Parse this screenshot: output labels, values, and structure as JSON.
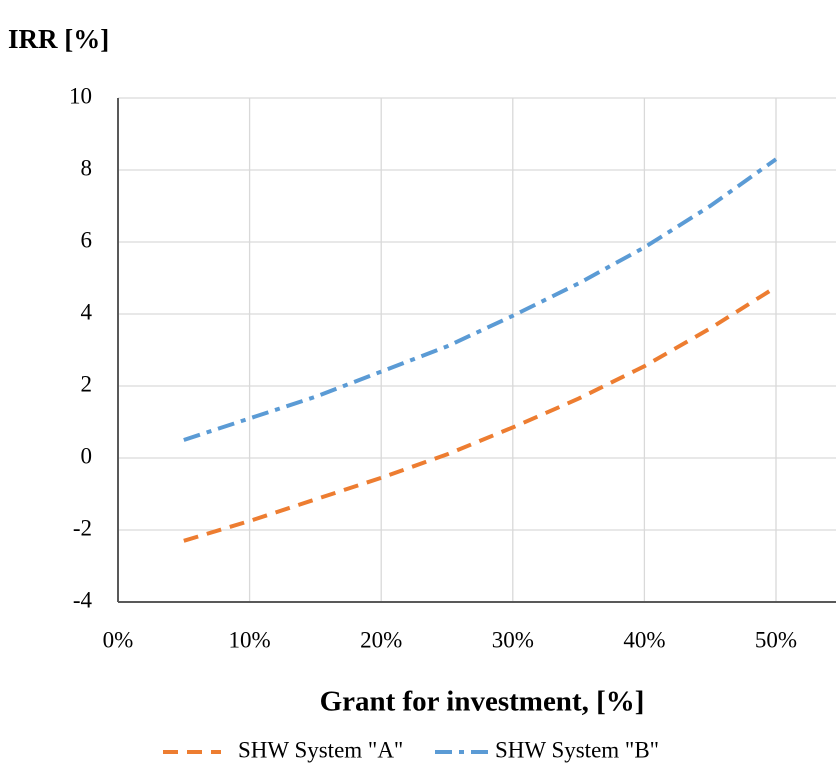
{
  "chart_data": {
    "type": "line",
    "y_axis_title": "IRR [%]",
    "x_axis_title": "Grant for investment, [%]",
    "x": [
      5,
      10,
      15,
      20,
      25,
      30,
      35,
      40,
      45,
      50
    ],
    "series": [
      {
        "name": "SHW System \"A\"",
        "color": "#ed7d31",
        "dash": "dashed",
        "values": [
          -2.3,
          -1.75,
          -1.15,
          -0.55,
          0.1,
          0.85,
          1.65,
          2.55,
          3.6,
          4.75
        ]
      },
      {
        "name": "SHW System \"B\"",
        "color": "#5b9bd5",
        "dash": "dashdot",
        "values": [
          0.5,
          1.1,
          1.7,
          2.4,
          3.1,
          3.95,
          4.85,
          5.85,
          7.0,
          8.3
        ]
      }
    ],
    "xlim": [
      0,
      55
    ],
    "xticks": [
      {
        "value": 0,
        "label": "0%"
      },
      {
        "value": 10,
        "label": "10%"
      },
      {
        "value": 20,
        "label": "20%"
      },
      {
        "value": 30,
        "label": "30%"
      },
      {
        "value": 40,
        "label": "40%"
      },
      {
        "value": 50,
        "label": "50%"
      }
    ],
    "ylim": [
      -4,
      10
    ],
    "yticks": [
      -4,
      -2,
      0,
      2,
      4,
      6,
      8,
      10
    ],
    "grid": true,
    "legend": "bottom"
  }
}
